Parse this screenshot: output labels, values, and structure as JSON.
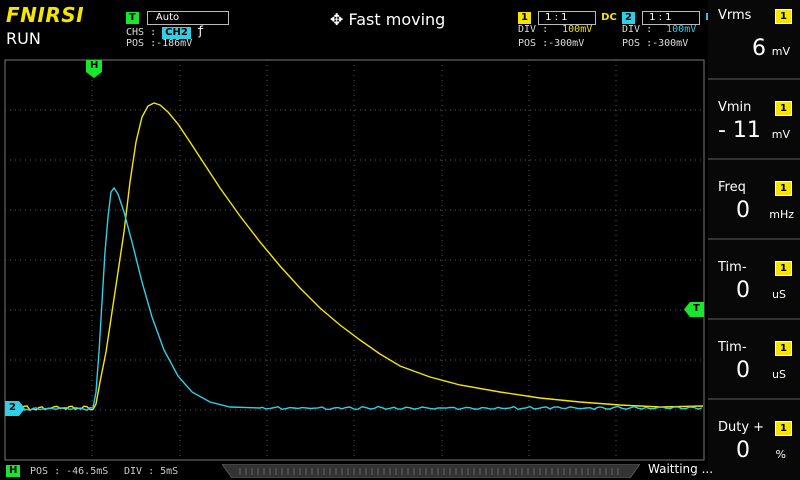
{
  "header": {
    "brand": "FNIRSI",
    "status": "RUN",
    "mode_icon": "move-arrows-icon",
    "mode": "Fast moving"
  },
  "trigger": {
    "tag": "T",
    "mode": "Auto",
    "chs_label": "CHS :",
    "channel": "CH2",
    "edge_icon": "rising-edge-icon",
    "edge_glyph": "ƒ",
    "pos": "POS :-186mV"
  },
  "ch1": {
    "tag": "1",
    "probe": "1 : 1",
    "coupling": "DC",
    "div_label": "DIV :",
    "div": "100mV",
    "pos": "POS :-300mV",
    "color": "#f5e600"
  },
  "ch2": {
    "tag": "2",
    "probe": "1 : 1",
    "coupling": "DC",
    "div_label": "DIV :",
    "div": "100mV",
    "pos": "POS :-300mV",
    "color": "#2ed0e6"
  },
  "measurements": [
    {
      "name": "Vrms",
      "ch": "1",
      "value": "6",
      "unit": "mV"
    },
    {
      "name": "Vmin",
      "ch": "1",
      "value": "- 11",
      "unit": "mV"
    },
    {
      "name": "Freq",
      "ch": "1",
      "value": "0",
      "unit": "mHz"
    },
    {
      "name": "Tim-",
      "ch": "1",
      "value": "0",
      "unit": "uS"
    },
    {
      "name": "Tim-",
      "ch": "1",
      "value": "0",
      "unit": "uS"
    },
    {
      "name": "Duty +",
      "ch": "1",
      "value": "0",
      "unit": "%"
    }
  ],
  "markers": {
    "h": "H",
    "t": "T",
    "ch2": "2"
  },
  "footer": {
    "h_tag": "H",
    "pos": "POS : -46.5mS",
    "div": "DIV : 5mS",
    "status": "Waitting ..."
  },
  "chart_data": {
    "type": "line",
    "grid": true,
    "series": [
      {
        "name": "",
        "color": "#f5e600"
      },
      {
        "name": "",
        "color": "#2ed0e6"
      }
    ]
  }
}
